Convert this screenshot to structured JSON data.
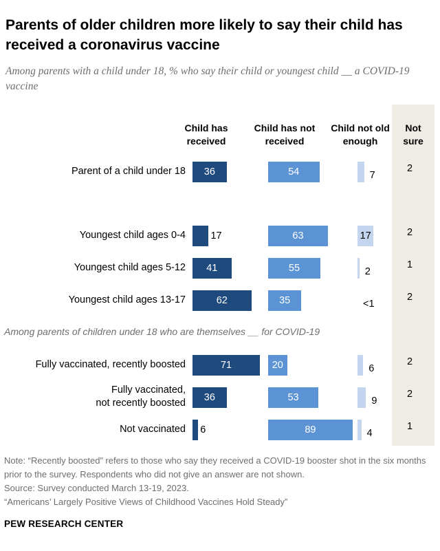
{
  "title": "Parents of older children more likely to say their child has received a coronavirus vaccine",
  "subtitle": "Among parents with a child under 18, % who say their child or youngest child __ a COVID-19 vaccine",
  "columns": {
    "received": "Child has received",
    "not_received": "Child has not received",
    "not_old_enough": "Child not old enough",
    "not_sure": "Not sure"
  },
  "section_label": "Among parents of children under 18 who are themselves __ for COVID-19",
  "chart_data": {
    "type": "bar",
    "layout": "grouped-horizontal-columns",
    "title": "Parents of older children more likely to say their child has received a coronavirus vaccine",
    "series": [
      {
        "name": "Child has received",
        "color": "#1e4a7e"
      },
      {
        "name": "Child has not received",
        "color": "#5b93d4"
      },
      {
        "name": "Child not old enough",
        "color": "#c3d5ef"
      },
      {
        "name": "Not sure",
        "color": null
      }
    ],
    "rows": [
      {
        "label": "Parent of a child under 18",
        "received": 36,
        "not_received": 54,
        "not_old_enough": 7,
        "not_old_enough_label": "7",
        "not_sure": "2"
      },
      {
        "label": "Youngest child ages 0-4",
        "received": 17,
        "not_received": 63,
        "not_old_enough": 17,
        "not_old_enough_label": "17",
        "not_sure": "2"
      },
      {
        "label": "Youngest child ages 5-12",
        "received": 41,
        "not_received": 55,
        "not_old_enough": 2,
        "not_old_enough_label": "2",
        "not_sure": "1"
      },
      {
        "label": "Youngest child ages 13-17",
        "received": 62,
        "not_received": 35,
        "not_old_enough": 0,
        "not_old_enough_label": "<1",
        "not_sure": "2"
      },
      {
        "label": "Fully vaccinated, recently boosted",
        "received": 71,
        "not_received": 20,
        "not_old_enough": 6,
        "not_old_enough_label": "6",
        "not_sure": "2"
      },
      {
        "label": "Fully vaccinated, not recently boosted",
        "received": 36,
        "not_received": 53,
        "not_old_enough": 9,
        "not_old_enough_label": "9",
        "not_sure": "2"
      },
      {
        "label": "Not vaccinated",
        "received": 6,
        "not_received": 89,
        "not_old_enough": 4,
        "not_old_enough_label": "4",
        "not_sure": "1"
      }
    ]
  },
  "notes": [
    "Note: “Recently boosted” refers to those who say they received a COVID-19 booster shot in the six months prior to the survey. Respondents who did not give an answer are not shown.",
    "Source: Survey conducted March 13-19, 2023.",
    "“Americans’ Largely Positive Views of Childhood Vaccines Hold Steady”"
  ],
  "brand": "PEW RESEARCH CENTER"
}
